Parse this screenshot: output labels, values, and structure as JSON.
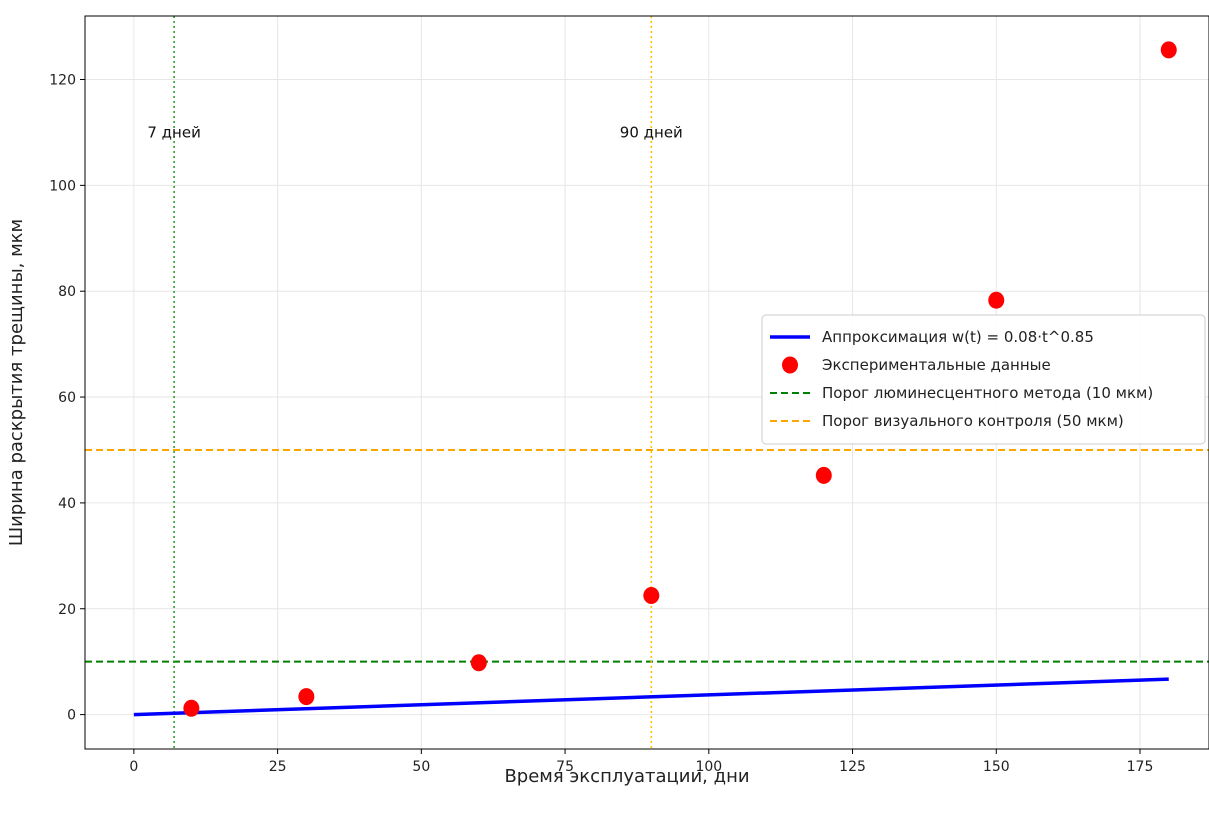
{
  "chart_data": {
    "type": "line",
    "xlabel": "Время эксплуатации, дни",
    "ylabel": "Ширина раскрытия трещины, мкм",
    "xlim": [
      -8.5,
      187
    ],
    "ylim": [
      -6.5,
      132
    ],
    "x_ticks": [
      0,
      25,
      50,
      75,
      100,
      125,
      150,
      175
    ],
    "y_ticks": [
      0,
      20,
      40,
      60,
      80,
      100,
      120
    ],
    "grid": true,
    "legend_position": "center-right",
    "series": [
      {
        "name": "Аппроксимация w(t) = 0.08·t^0.85",
        "kind": "line",
        "color": "#0000ff",
        "x": [
          0,
          180
        ],
        "y": [
          0,
          6.7
        ]
      },
      {
        "name": "Экспериментальные данные",
        "kind": "scatter",
        "color": "#ff0000",
        "x": [
          10,
          30,
          60,
          90,
          120,
          150,
          180
        ],
        "y": [
          1.2,
          3.4,
          9.8,
          22.5,
          45.2,
          78.3,
          125.6
        ]
      },
      {
        "name": "Порог люминесцентного метода (10 мкм)",
        "kind": "hline",
        "color": "#008000",
        "y": 10
      },
      {
        "name": "Порог визуального контроля (50 мкм)",
        "kind": "hline",
        "color": "#ffa500",
        "y": 50
      }
    ],
    "vlines": [
      {
        "x": 7,
        "color": "#2ca02c",
        "label": "7 дней",
        "label_y": 110
      },
      {
        "x": 90,
        "color": "#ffbf00",
        "label": "90 дней",
        "label_y": 110
      }
    ]
  }
}
